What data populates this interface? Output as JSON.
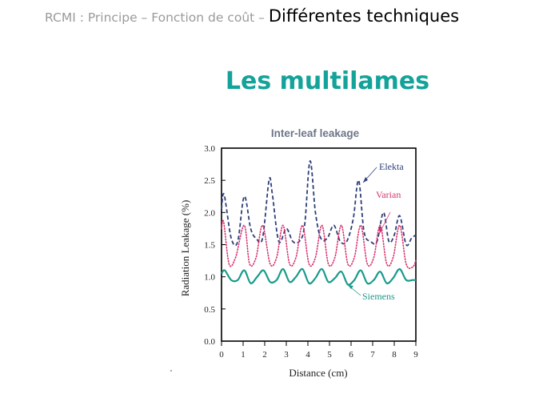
{
  "header": {
    "breadcrumb_path": "RCMI : Principe – Fonction de coût – ",
    "breadcrumb_current": "Différentes techniques"
  },
  "slide": {
    "title": "Les multilames"
  },
  "chart_data": {
    "type": "line",
    "title": "Inter-leaf leakage",
    "xlabel": "Distance (cm)",
    "ylabel": "Radiation Leakage (%)",
    "xlim": [
      0,
      9
    ],
    "ylim": [
      0,
      3.0
    ],
    "xticks": [
      "0",
      "1",
      "2",
      "3",
      "4",
      "5",
      "6",
      "7",
      "8",
      "9"
    ],
    "yticks": [
      "0.0",
      "0.5",
      "1.0",
      "1.5",
      "2.0",
      "2.5",
      "3.0"
    ],
    "grid": false,
    "colors": {
      "Elekta": "#2f3f7a",
      "Varian": "#d8336f",
      "Siemens": "#1a9a8c"
    },
    "series": [
      {
        "name": "Elekta",
        "style": "dashed",
        "x": [
          0,
          0.12,
          0.45,
          0.75,
          1.05,
          1.35,
          1.6,
          1.9,
          2.2,
          2.35,
          2.65,
          3.0,
          3.3,
          3.6,
          3.85,
          4.1,
          4.35,
          4.6,
          4.9,
          5.2,
          5.5,
          5.8,
          6.1,
          6.35,
          6.6,
          6.9,
          7.2,
          7.5,
          7.75,
          8.0,
          8.25,
          8.55,
          8.8,
          9.0
        ],
        "y": [
          2.05,
          2.28,
          1.6,
          1.55,
          2.25,
          1.75,
          1.6,
          1.6,
          2.5,
          2.3,
          1.55,
          1.75,
          1.55,
          1.55,
          1.8,
          2.8,
          2.0,
          1.6,
          1.6,
          1.8,
          1.55,
          1.55,
          1.9,
          2.5,
          1.7,
          1.55,
          1.55,
          2.0,
          1.55,
          1.65,
          1.95,
          1.5,
          1.6,
          1.65
        ]
      },
      {
        "name": "Varian",
        "style": "dotted",
        "x": [
          0,
          0.1,
          0.35,
          0.65,
          1.05,
          1.3,
          1.6,
          1.9,
          2.25,
          2.55,
          2.85,
          3.15,
          3.45,
          3.75,
          4.05,
          4.35,
          4.65,
          4.95,
          5.25,
          5.55,
          5.85,
          6.15,
          6.45,
          6.75,
          7.05,
          7.35,
          7.65,
          7.95,
          8.25,
          8.55,
          8.85,
          9.0
        ],
        "y": [
          1.75,
          1.85,
          1.2,
          1.3,
          1.8,
          1.2,
          1.3,
          1.8,
          1.2,
          1.3,
          1.8,
          1.2,
          1.3,
          1.8,
          1.2,
          1.3,
          1.8,
          1.2,
          1.3,
          1.8,
          1.2,
          1.3,
          1.8,
          1.2,
          1.3,
          1.8,
          1.2,
          1.3,
          1.8,
          1.2,
          1.15,
          1.25
        ]
      },
      {
        "name": "Siemens",
        "style": "solid",
        "x": [
          0,
          0.15,
          0.45,
          0.75,
          1.05,
          1.35,
          1.65,
          1.95,
          2.25,
          2.55,
          2.85,
          3.15,
          3.45,
          3.75,
          4.05,
          4.35,
          4.65,
          4.95,
          5.25,
          5.55,
          5.85,
          6.15,
          6.45,
          6.75,
          7.05,
          7.35,
          7.65,
          7.95,
          8.25,
          8.55,
          8.85,
          9.0
        ],
        "y": [
          1.05,
          1.1,
          0.95,
          0.95,
          1.1,
          0.9,
          1.0,
          1.1,
          0.92,
          0.95,
          1.12,
          0.92,
          1.0,
          1.12,
          0.9,
          0.98,
          1.12,
          0.92,
          0.98,
          1.08,
          0.88,
          0.95,
          1.1,
          0.9,
          0.95,
          1.08,
          0.9,
          0.98,
          1.12,
          0.95,
          0.95,
          0.95
        ]
      }
    ],
    "annotations": [
      "Elekta",
      "Varian",
      "Siemens"
    ]
  }
}
